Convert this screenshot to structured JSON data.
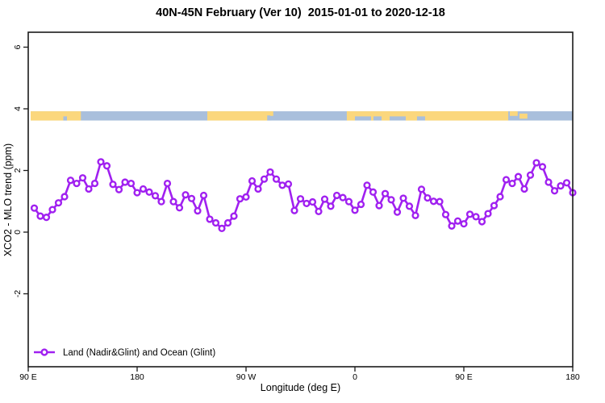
{
  "figure": {
    "title": "40N-45N February (Ver 10)  2015-01-01 to 2020-12-18"
  },
  "chart_data": {
    "type": "line",
    "title": "40N-45N February (Ver 10)  2015-01-01 to 2020-12-18",
    "xlabel": "Longitude (deg E)",
    "ylabel": "XCO2 - MLO trend (ppm)",
    "xlim": [
      90,
      540
    ],
    "ylim": [
      -4.4,
      6.5
    ],
    "grid": false,
    "x_ticks": [
      {
        "label": "90 E",
        "lon": 90
      },
      {
        "label": "180",
        "lon": 180
      },
      {
        "label": "90 W",
        "lon": 270
      },
      {
        "label": "0",
        "lon": 360
      },
      {
        "label": "90 E",
        "lon": 450
      },
      {
        "label": "180",
        "lon": 540
      }
    ],
    "y_ticks": [
      {
        "label": "-2",
        "value": -2
      },
      {
        "label": "0",
        "value": 0
      },
      {
        "label": "2",
        "value": 2
      },
      {
        "label": "4",
        "value": 4
      },
      {
        "label": "6",
        "value": 6
      }
    ],
    "legend": {
      "position": "bottom-left",
      "label": "Land (Nadir&Glint) and Ocean (Glint)"
    },
    "series": [
      {
        "name": "Land (Nadir&Glint) and Ocean (Glint)",
        "color": "#A020F0",
        "marker": "open-circle",
        "x_start": 95,
        "x_step": 5,
        "values": [
          0.78,
          0.52,
          0.48,
          0.73,
          0.95,
          1.15,
          1.68,
          1.58,
          1.76,
          1.4,
          1.58,
          2.28,
          2.15,
          1.55,
          1.38,
          1.62,
          1.58,
          1.28,
          1.4,
          1.3,
          1.18,
          0.99,
          1.58,
          0.99,
          0.79,
          1.21,
          1.09,
          0.69,
          1.19,
          0.42,
          0.3,
          0.12,
          0.3,
          0.52,
          1.08,
          1.14,
          1.66,
          1.4,
          1.72,
          1.95,
          1.72,
          1.52,
          1.56,
          0.7,
          1.08,
          0.93,
          0.98,
          0.67,
          1.07,
          0.84,
          1.19,
          1.12,
          0.99,
          0.71,
          0.9,
          1.52,
          1.3,
          0.86,
          1.25,
          1.05,
          0.65,
          1.1,
          0.84,
          0.54,
          1.39,
          1.11,
          1.0,
          0.99,
          0.57,
          0.2,
          0.36,
          0.27,
          0.58,
          0.5,
          0.34,
          0.6,
          0.86,
          1.15,
          1.7,
          1.58,
          1.8,
          1.4,
          1.85,
          2.25,
          2.12,
          1.62,
          1.34,
          1.5,
          1.6,
          1.28
        ]
      }
    ],
    "surface_band": {
      "description": "land-ocean mask strip along longitude",
      "y_range": [
        3.62,
        3.92
      ],
      "lon_range": [
        92,
        540
      ],
      "colors": {
        "land": "#FBD77D",
        "ocean": "#A9BFDC"
      },
      "base": "ocean",
      "rects": [
        {
          "type": "land",
          "lon0": 92,
          "lon1": 133.5,
          "f0": 0,
          "f1": 1
        },
        {
          "type": "ocean",
          "lon0": 119,
          "lon1": 122,
          "f0": 0.55,
          "f1": 1
        },
        {
          "type": "land",
          "lon0": 238,
          "lon1": 290,
          "f0": 0,
          "f1": 1
        },
        {
          "type": "ocean",
          "lon0": 287.5,
          "lon1": 291,
          "f0": 0.45,
          "f1": 1
        },
        {
          "type": "land",
          "lon0": 290,
          "lon1": 292.5,
          "f0": 0,
          "f1": 0.5
        },
        {
          "type": "land",
          "lon0": 353.3,
          "lon1": 486.7,
          "f0": 0,
          "f1": 0.55
        },
        {
          "type": "land",
          "lon0": 353.3,
          "lon1": 360,
          "f0": 0,
          "f1": 1
        },
        {
          "type": "land",
          "lon0": 373.3,
          "lon1": 375.3,
          "f0": 0,
          "f1": 1
        },
        {
          "type": "land",
          "lon0": 382,
          "lon1": 388.7,
          "f0": 0,
          "f1": 1
        },
        {
          "type": "land",
          "lon0": 402,
          "lon1": 411.3,
          "f0": 0,
          "f1": 1
        },
        {
          "type": "land",
          "lon0": 418,
          "lon1": 486.7,
          "f0": 0,
          "f1": 1
        },
        {
          "type": "land",
          "lon0": 488,
          "lon1": 494.5,
          "f0": 0,
          "f1": 0.5
        },
        {
          "type": "land",
          "lon0": 496,
          "lon1": 502.5,
          "f0": 0.25,
          "f1": 0.8
        }
      ]
    }
  }
}
